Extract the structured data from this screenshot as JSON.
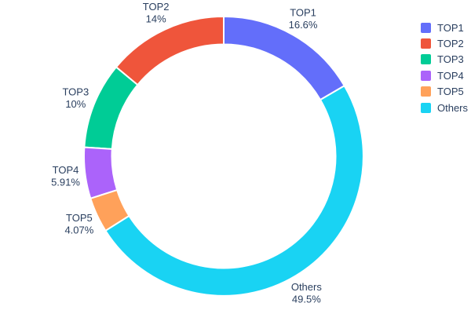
{
  "chart_data": {
    "type": "pie",
    "subtype": "donut",
    "title": "",
    "hole": 0.8,
    "labels": [
      "TOP1",
      "TOP2",
      "TOP3",
      "TOP4",
      "TOP5",
      "Others"
    ],
    "values": [
      16.6,
      14,
      10,
      5.91,
      4.07,
      49.5
    ],
    "percent_labels": [
      "16.6%",
      "14%",
      "10%",
      "5.91%",
      "4.07%",
      "49.5%"
    ],
    "colors": [
      "#636EFA",
      "#EF553B",
      "#00CC96",
      "#AB63FA",
      "#FFA15A",
      "#19D3F3"
    ],
    "direction": "counterclockwise",
    "rotation": "first-slice-ends-at-top",
    "labels_position": "outside",
    "text_color": "#2a3f5f",
    "slice_gap_color": "#ffffff",
    "background": "#ffffff",
    "legend": {
      "position": "right",
      "items": [
        {
          "label": "TOP1",
          "color": "#636EFA"
        },
        {
          "label": "TOP2",
          "color": "#EF553B"
        },
        {
          "label": "TOP3",
          "color": "#00CC96"
        },
        {
          "label": "TOP4",
          "color": "#AB63FA"
        },
        {
          "label": "TOP5",
          "color": "#FFA15A"
        },
        {
          "label": "Others",
          "color": "#19D3F3"
        }
      ]
    }
  }
}
